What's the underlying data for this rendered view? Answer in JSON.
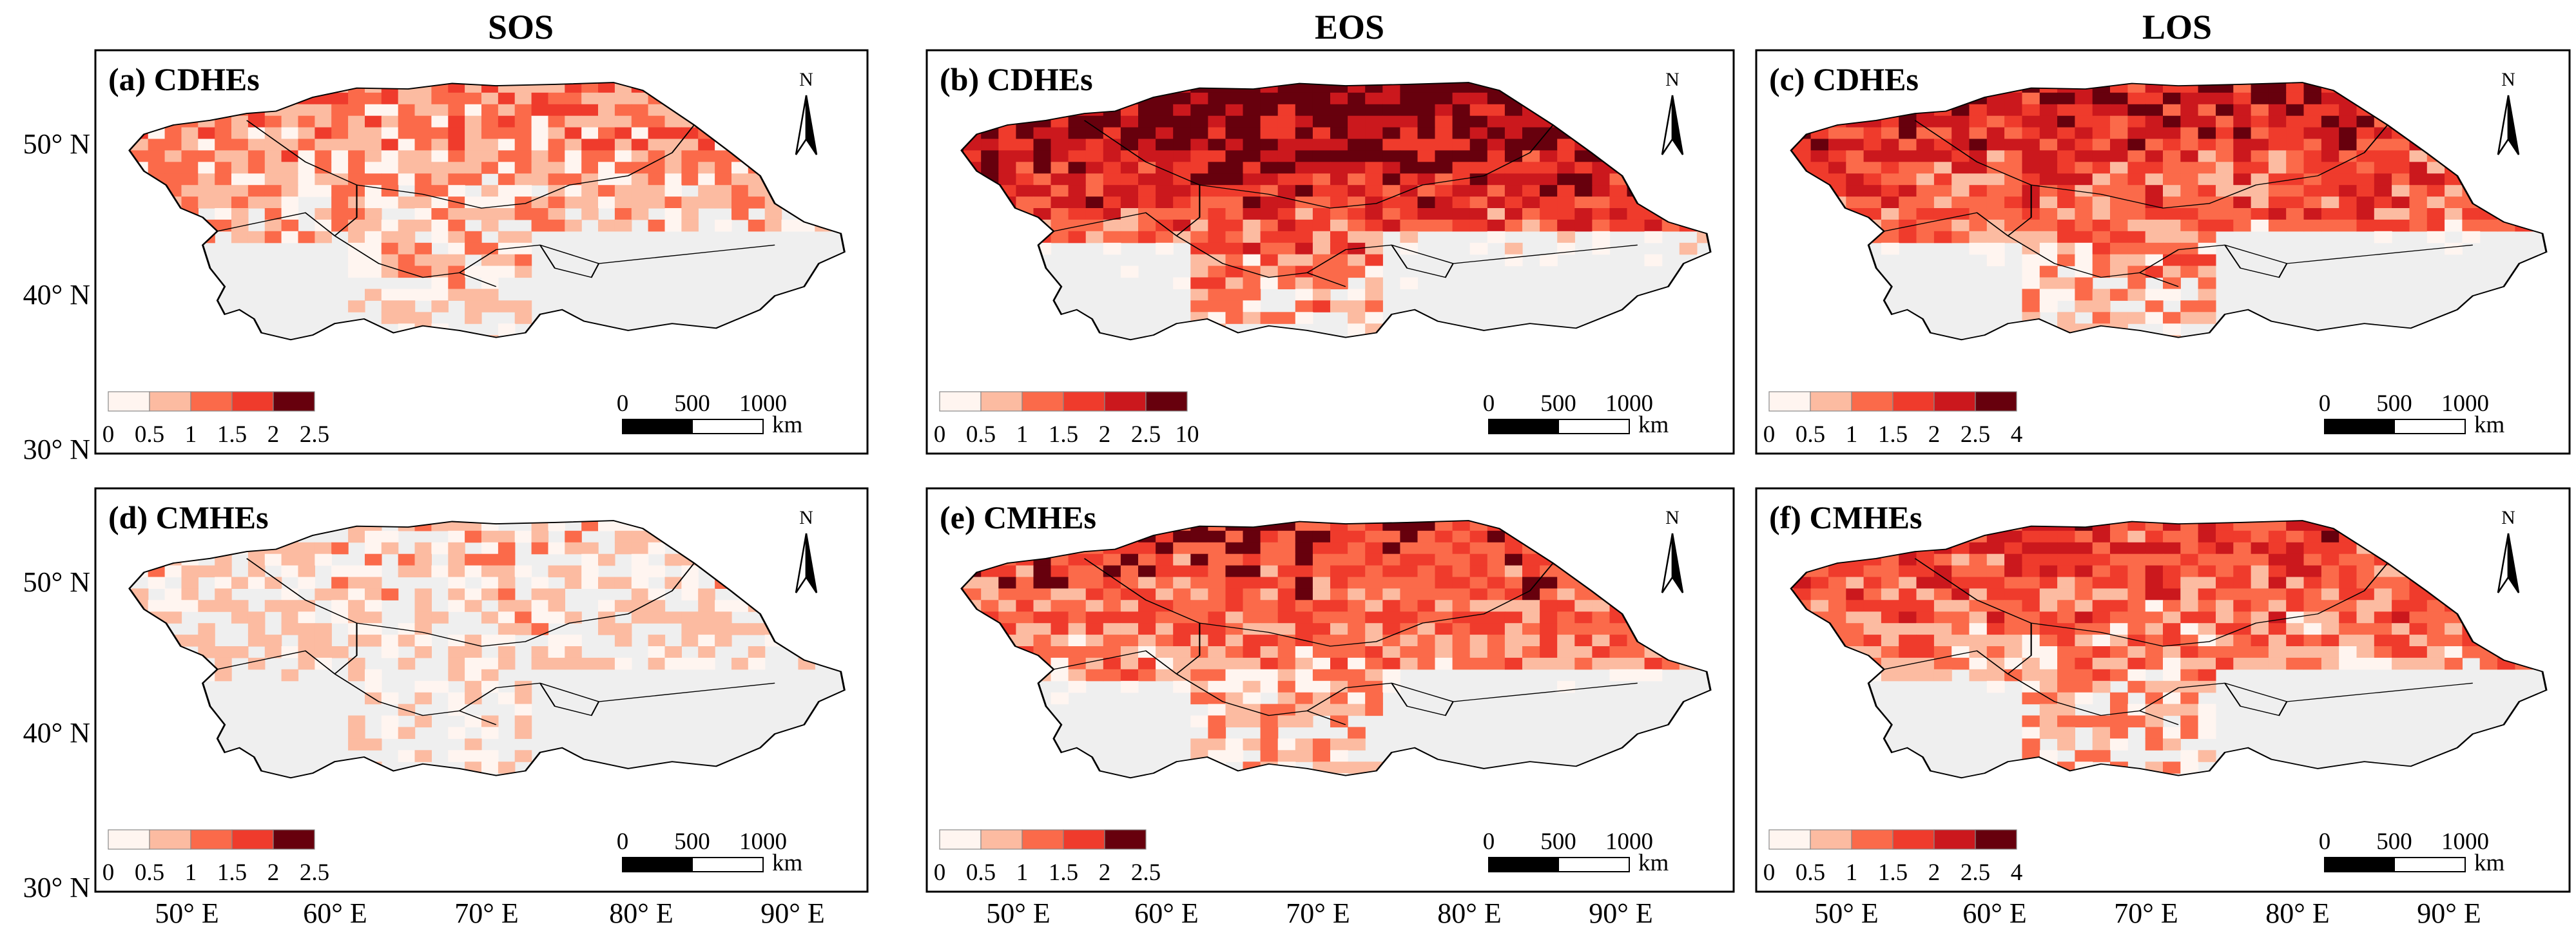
{
  "columns": [
    "SOS",
    "EOS",
    "LOS"
  ],
  "lat_labels": [
    "50° N",
    "40° N",
    "30° N"
  ],
  "lon_labels": [
    "50° E",
    "60° E",
    "70° E",
    "80° E",
    "90° E"
  ],
  "north_label": "N",
  "scale_bar": {
    "ticks": [
      "0",
      "500",
      "1000"
    ],
    "unit": "km"
  },
  "no_data_color": "#efefef",
  "palettes": {
    "six": [
      "#fff5f0",
      "#fcbba1",
      "#fb6a4a",
      "#ef3b2c",
      "#cb181d",
      "#67000d"
    ],
    "five": [
      "#fff5f0",
      "#fcbba1",
      "#fb6a4a",
      "#ef3b2c",
      "#67000d"
    ]
  },
  "panels": [
    {
      "label": "(a) CDHEs",
      "legend_ticks": [
        "0",
        "0.5",
        "1",
        "1.5",
        "2",
        "2.5"
      ],
      "intensity": "medium"
    },
    {
      "label": "(b) CDHEs",
      "legend_ticks": [
        "0",
        "0.5",
        "1",
        "1.5",
        "2",
        "2.5",
        "10"
      ],
      "intensity": "very-high"
    },
    {
      "label": "(c) CDHEs",
      "legend_ticks": [
        "0",
        "0.5",
        "1",
        "1.5",
        "2",
        "2.5",
        "4"
      ],
      "intensity": "high"
    },
    {
      "label": "(d) CMHEs",
      "legend_ticks": [
        "0",
        "0.5",
        "1",
        "1.5",
        "2",
        "2.5"
      ],
      "intensity": "low"
    },
    {
      "label": "(e) CMHEs",
      "legend_ticks": [
        "0",
        "0.5",
        "1",
        "1.5",
        "2",
        "2.5"
      ],
      "intensity": "high"
    },
    {
      "label": "(f) CMHEs",
      "legend_ticks": [
        "0",
        "0.5",
        "1",
        "1.5",
        "2",
        "2.5",
        "4"
      ],
      "intensity": "medium-high"
    }
  ]
}
